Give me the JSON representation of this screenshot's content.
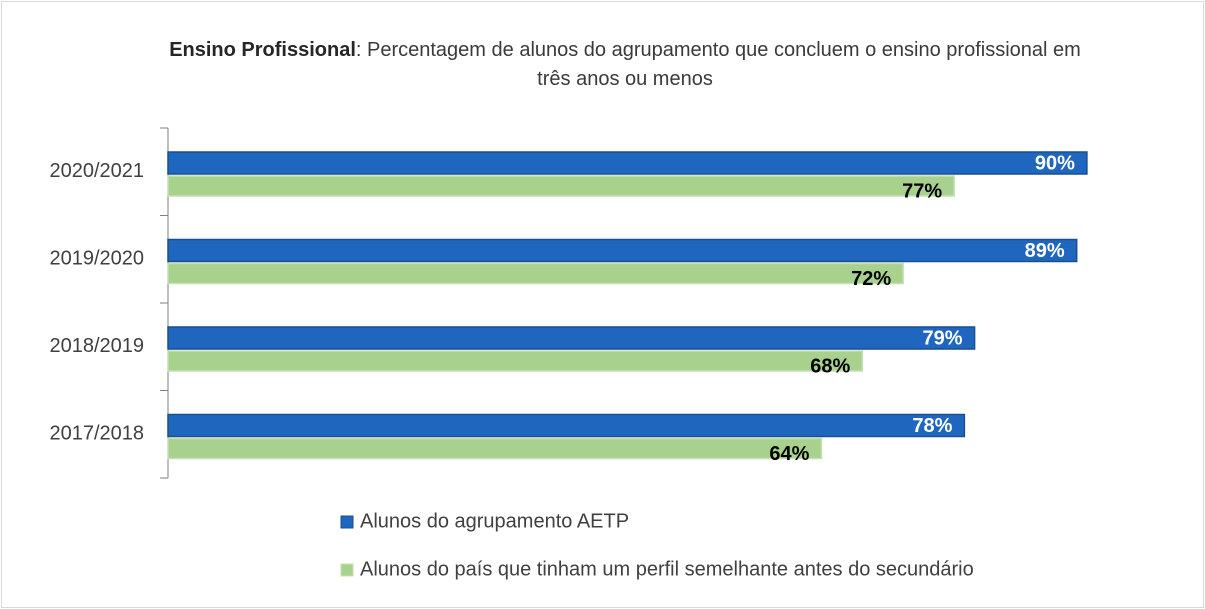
{
  "chart_data": {
    "type": "hbar",
    "title_bold": "Ensino Profissional",
    "title": ": Percentagem de alunos do agrupamento que concluem o ensino profissional em três anos ou menos",
    "categories": [
      "2020/2021",
      "2019/2020",
      "2018/2019",
      "2017/2018"
    ],
    "series": [
      {
        "name": "Alunos do agrupamento AETP",
        "color": "#1f66be",
        "values": [
          90,
          89,
          79,
          78
        ],
        "value_labels": [
          "90%",
          "89%",
          "79%",
          "78%"
        ]
      },
      {
        "name": "Alunos do país que tinham um perfil semelhante antes do secundário",
        "color": "#a9d18e",
        "values": [
          77,
          72,
          68,
          64
        ],
        "value_labels": [
          "77%",
          "72%",
          "68%",
          "64%"
        ]
      }
    ],
    "xlim": [
      0,
      100
    ],
    "legend": "bottom"
  }
}
